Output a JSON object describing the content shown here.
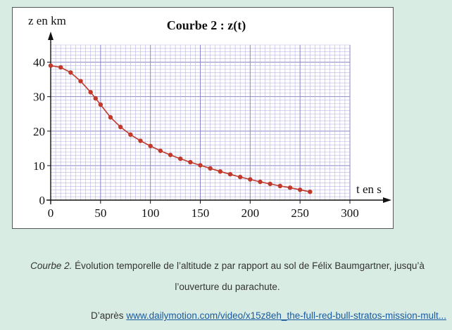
{
  "figure": {
    "caption_label": "Courbe 2.",
    "caption_text": "Évolution temporelle de l’altitude z par rapport au sol de Félix Baumgartner, jusqu’à l’ouverture du parachute.",
    "source_prefix": "D’après",
    "source_link": "www.dailymotion.com/video/x15z8eh_the-full-red-bull-stratos-mission-mult..."
  },
  "chart_data": {
    "type": "line",
    "title": "Courbe 2 : z(t)",
    "ylabel": "z en km",
    "xlabel": "t en s",
    "xlim": [
      0,
      300
    ],
    "ylim": [
      0,
      45
    ],
    "x_ticks": [
      0,
      50,
      100,
      150,
      200,
      250,
      300
    ],
    "y_ticks": [
      0,
      10,
      20,
      30,
      40
    ],
    "grid": true,
    "series": [
      {
        "color": "#c0392b",
        "x": [
          0,
          10,
          20,
          30,
          40,
          45,
          50,
          60,
          70,
          80,
          90,
          100,
          110,
          120,
          130,
          140,
          150,
          160,
          170,
          180,
          190,
          200,
          210,
          220,
          230,
          240,
          250,
          260
        ],
        "y": [
          39,
          38.5,
          37,
          34.5,
          31.3,
          29.5,
          27.7,
          24,
          21.2,
          19,
          17.2,
          15.7,
          14.3,
          13.1,
          12,
          11,
          10.1,
          9.2,
          8.3,
          7.5,
          6.7,
          6,
          5.3,
          4.7,
          4.1,
          3.6,
          3,
          2.4
        ]
      }
    ]
  }
}
